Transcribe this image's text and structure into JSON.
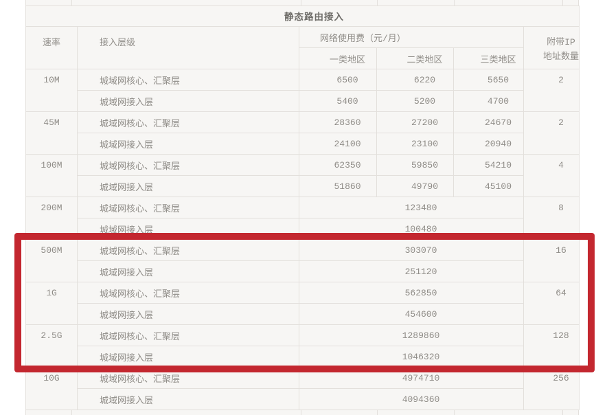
{
  "table": {
    "title": "静态路由接入",
    "header": {
      "speed": "速率",
      "access_level": "接入层级",
      "fee": "网络使用费（元/月）",
      "regions": [
        "一类地区",
        "二类地区",
        "三类地区"
      ],
      "ip_line1": "附带IP",
      "ip_line2": "地址数量"
    },
    "rows": [
      {
        "speed": "10M",
        "merged": false,
        "ip": "2",
        "tiers": [
          {
            "level": "城域网核心、汇聚层",
            "prices": [
              "6500",
              "6220",
              "5650"
            ]
          },
          {
            "level": "城域网接入层",
            "prices": [
              "5400",
              "5200",
              "4700"
            ]
          }
        ]
      },
      {
        "speed": "45M",
        "merged": false,
        "ip": "2",
        "tiers": [
          {
            "level": "城域网核心、汇聚层",
            "prices": [
              "28360",
              "27200",
              "24670"
            ]
          },
          {
            "level": "城域网接入层",
            "prices": [
              "24100",
              "23100",
              "20940"
            ]
          }
        ]
      },
      {
        "speed": "100M",
        "merged": false,
        "ip": "4",
        "tiers": [
          {
            "level": "城域网核心、汇聚层",
            "prices": [
              "62350",
              "59850",
              "54210"
            ]
          },
          {
            "level": "城域网接入层",
            "prices": [
              "51860",
              "49790",
              "45100"
            ]
          }
        ]
      },
      {
        "speed": "200M",
        "merged": true,
        "ip": "8",
        "tiers": [
          {
            "level": "城域网核心、汇聚层",
            "prices": [
              "123480"
            ]
          },
          {
            "level": "城域网接入层",
            "prices": [
              "100480"
            ]
          }
        ]
      },
      {
        "speed": "500M",
        "merged": true,
        "ip": "16",
        "tiers": [
          {
            "level": "城域网核心、汇聚层",
            "prices": [
              "303070"
            ]
          },
          {
            "level": "城域网接入层",
            "prices": [
              "251120"
            ]
          }
        ]
      },
      {
        "speed": "1G",
        "merged": true,
        "ip": "64",
        "tiers": [
          {
            "level": "城域网核心、汇聚层",
            "prices": [
              "562850"
            ]
          },
          {
            "level": "城域网接入层",
            "prices": [
              "454600"
            ]
          }
        ]
      },
      {
        "speed": "2.5G",
        "merged": true,
        "ip": "128",
        "tiers": [
          {
            "level": "城域网核心、汇聚层",
            "prices": [
              "1289860"
            ]
          },
          {
            "level": "城域网接入层",
            "prices": [
              "1046320"
            ]
          }
        ]
      },
      {
        "speed": "10G",
        "merged": true,
        "ip": "256",
        "tiers": [
          {
            "level": "城域网核心、汇聚层",
            "prices": [
              "4974710"
            ]
          },
          {
            "level": "城域网接入层",
            "prices": [
              "4094360"
            ]
          }
        ]
      }
    ],
    "annotation": {
      "shape": "red-rectangle",
      "highlighted_speeds": [
        "500M",
        "1G",
        "2.5G"
      ],
      "color": "#c3272f"
    }
  }
}
